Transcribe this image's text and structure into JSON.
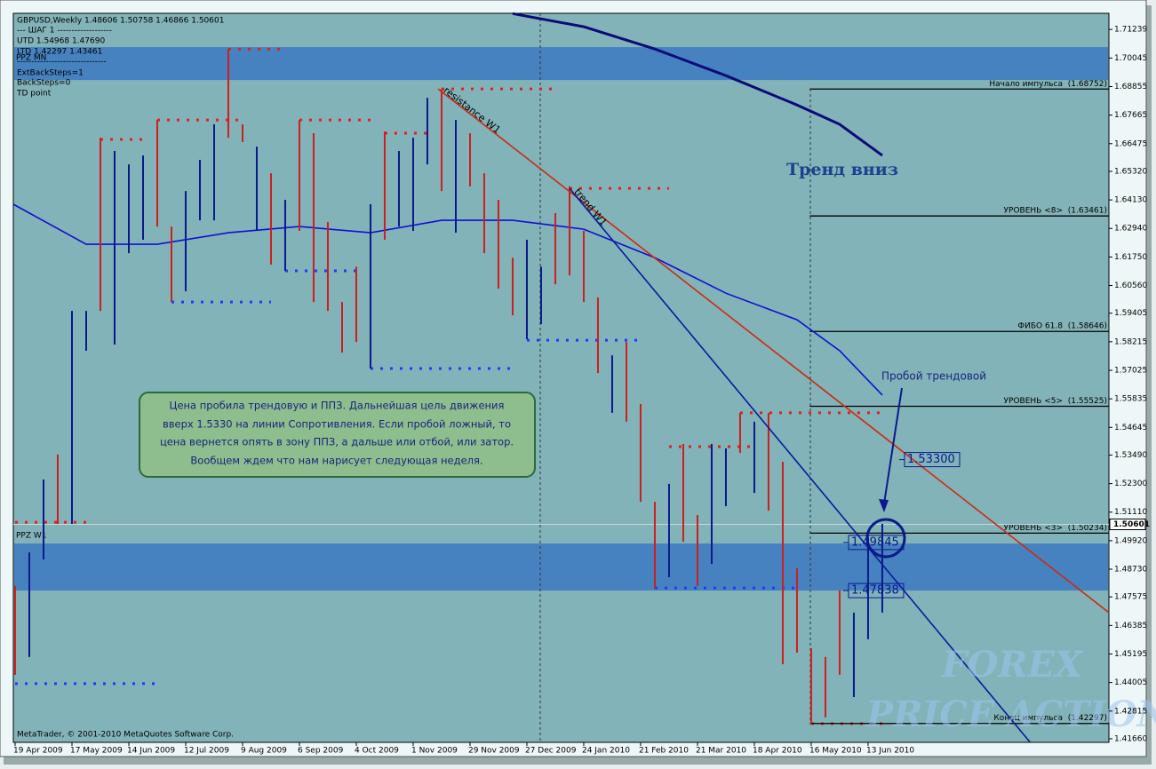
{
  "header": [
    "GBPUSD,Weekly  1.48606 1.50758 1.46866 1.50601",
    "---    ШАГ 1    -------------------",
    "UTD  1.54968  1.47690",
    "LTD  1.42297  1.43461",
    "-------------------------------",
    "ExtBackSteps=1",
    "BackSteps=0",
    "TD point"
  ],
  "copyright": "MetaTrader, © 2001-2010 MetaQuotes Software Corp.",
  "watermark": [
    "FOREX",
    "PRICE ACTION"
  ],
  "chart_data": {
    "type": "ohlc",
    "xlim": [
      -0.125,
      76.94
    ],
    "ylim": [
      1.4151,
      1.7191
    ],
    "yticks": [
      1.71239,
      1.70045,
      1.68855,
      1.67665,
      1.66475,
      {
        "value": 1.6532,
        "label": "1.65320"
      },
      {
        "value": 1.6413,
        "label": "1.64130"
      },
      {
        "value": 1.6294,
        "label": "1.62940"
      },
      {
        "value": 1.6175,
        "label": "1.61750"
      },
      {
        "value": 1.6056,
        "label": "1.60560"
      },
      1.59405,
      1.58215,
      1.57025,
      1.55835,
      1.54645,
      {
        "value": 1.5349,
        "label": "1.53490"
      },
      {
        "value": 1.523,
        "label": "1.52300"
      },
      {
        "value": 1.5111,
        "label": "1.51110"
      },
      {
        "value": 1.4992,
        "label": "1.49920"
      },
      {
        "value": 1.4873,
        "label": "1.48730"
      },
      1.47575,
      1.46385,
      1.45195,
      1.44005,
      1.42815,
      {
        "value": 1.4166,
        "label": "1.41660"
      }
    ],
    "xticks": [
      {
        "value": 0,
        "label": "19 Apr 2009"
      },
      {
        "value": 4,
        "label": "17 May 2009"
      },
      {
        "value": 8,
        "label": "14 Jun 2009"
      },
      {
        "value": 12,
        "label": "12 Jul 2009"
      },
      {
        "value": 16,
        "label": "9 Aug 2009"
      },
      {
        "value": 20,
        "label": "6 Sep 2009"
      },
      {
        "value": 24,
        "label": "4 Oct 2009"
      },
      {
        "value": 28,
        "label": "1 Nov 2009"
      },
      {
        "value": 32,
        "label": "29 Nov 2009"
      },
      {
        "value": 36,
        "label": "27 Dec 2009"
      },
      {
        "value": 40,
        "label": "24 Jan 2010"
      },
      {
        "value": 44,
        "label": "21 Feb 2010"
      },
      {
        "value": 48,
        "label": "21 Mar 2010"
      },
      {
        "value": 52,
        "label": "18 Apr 2010"
      },
      {
        "value": 56,
        "label": "16 May 2010"
      },
      {
        "value": 60,
        "label": "13 Jun 2010"
      }
    ],
    "bars": {
      "high": [
        1.4803,
        1.4943,
        1.5247,
        1.5351,
        1.595,
        1.595,
        1.6672,
        1.6617,
        1.6561,
        1.6598,
        1.6746,
        1.6302,
        1.645,
        1.658,
        1.6728,
        1.7042,
        1.6728,
        1.6635,
        1.6524,
        1.6413,
        1.6746,
        1.6691,
        1.6321,
        1.5987,
        1.6135,
        1.6395,
        1.6698,
        1.6617,
        1.6672,
        1.6839,
        1.6876,
        1.6746,
        1.6691,
        1.6524,
        1.6413,
        1.6172,
        1.6247,
        1.6135,
        1.6358,
        1.6469,
        1.6284,
        1.6006,
        1.5765,
        1.5821,
        1.5562,
        1.5154,
        1.5229,
        1.5395,
        1.5099,
        1.5395,
        1.5377,
        1.5525,
        1.5488,
        1.5525,
        1.5321,
        1.4877,
        1.4544,
        1.4507,
        1.4784,
        1.4692,
        1.5006,
        1.5062
      ],
      "low": [
        1.4433,
        1.4507,
        1.4914,
        1.5062,
        1.5062,
        1.5784,
        1.595,
        1.581,
        1.6191,
        1.6247,
        1.6302,
        1.5987,
        1.6032,
        1.6328,
        1.6328,
        1.6672,
        1.6654,
        1.6284,
        1.6143,
        1.6117,
        1.6284,
        1.5987,
        1.595,
        1.5776,
        1.5821,
        1.571,
        1.6247,
        1.6302,
        1.6284,
        1.6561,
        1.645,
        1.6276,
        1.6469,
        1.6191,
        1.6043,
        1.5932,
        1.5832,
        1.5895,
        1.6061,
        1.6098,
        1.5987,
        1.5691,
        1.5525,
        1.5488,
        1.5154,
        1.4792,
        1.484,
        1.4988,
        1.4803,
        1.4895,
        1.5136,
        1.5358,
        1.5191,
        1.5117,
        1.4477,
        1.4525,
        1.4229,
        1.4255,
        1.4433,
        1.434,
        1.4581,
        1.4692
      ],
      "colors": [
        "#cc1f1f",
        "#0a1a8c",
        "#0a1a8c",
        "#cc1f1f",
        "#0a1a8c",
        "#0a1a8c",
        "#cc1f1f",
        "#0a1a8c",
        "#0a1a8c",
        "#0a1a8c",
        "#cc1f1f",
        "#cc1f1f",
        "#0a1a8c",
        "#0a1a8c",
        "#0a1a8c",
        "#cc1f1f",
        "#cc1f1f",
        "#0a1a8c",
        "#cc1f1f",
        "#0a1a8c",
        "#cc1f1f",
        "#cc1f1f",
        "#cc1f1f",
        "#cc1f1f",
        "#cc1f1f",
        "#0a1a8c",
        "#cc1f1f",
        "#0a1a8c",
        "#0a1a8c",
        "#0a1a8c",
        "#cc1f1f",
        "#0a1a8c",
        "#cc1f1f",
        "#cc1f1f",
        "#cc1f1f",
        "#cc1f1f",
        "#0a1a8c",
        "#0a1a8c",
        "#cc1f1f",
        "#cc1f1f",
        "#cc1f1f",
        "#cc1f1f",
        "#0a1a8c",
        "#cc1f1f",
        "#cc1f1f",
        "#cc1f1f",
        "#0a1a8c",
        "#cc1f1f",
        "#cc1f1f",
        "#0a1a8c",
        "#0a1a8c",
        "#cc1f1f",
        "#0a1a8c",
        "#cc1f1f",
        "#cc1f1f",
        "#cc1f1f",
        "#cc1f1f",
        "#cc1f1f",
        "#cc1f1f",
        "#0a1a8c",
        "#0a1a8c",
        "#0a1a8c"
      ]
    },
    "moving_averages": [
      {
        "color": "#1010d0",
        "width": 1.6,
        "x": [
          -0.125,
          5,
          10,
          15,
          20,
          25,
          30,
          35,
          40,
          45,
          50,
          55,
          58,
          61
        ],
        "values": [
          1.6395,
          1.6228,
          1.6228,
          1.6276,
          1.6302,
          1.6276,
          1.6328,
          1.6328,
          1.6291,
          1.6172,
          1.6024,
          1.5913,
          1.5784,
          1.5599
        ]
      },
      {
        "color": "#0a0a78",
        "width": 3,
        "x": [
          35,
          40,
          45,
          50,
          55,
          58,
          61
        ],
        "values": [
          1.719,
          1.7135,
          1.7042,
          1.6931,
          1.6809,
          1.6728,
          1.6598
        ]
      }
    ],
    "trend_lines": [
      {
        "label": "resistance W1",
        "color": "#cc2a10",
        "x": [
          29.75,
          76.94
        ],
        "values": [
          1.6876,
          1.4692
        ]
      },
      {
        "label": "trend W1",
        "color": "#0a1a9c",
        "x": [
          39,
          71.4
        ],
        "values": [
          1.6461,
          1.4151
        ]
      }
    ],
    "zone_color": "#4682c0",
    "zones": [
      {
        "label": "PPZ MN",
        "range": [
          1.6913,
          1.705
        ]
      },
      {
        "label": "PPZ W1",
        "range": [
          1.4784,
          1.498
        ]
      }
    ],
    "level_start": 55.9,
    "levels": [
      {
        "label": "Начало импульса",
        "value_label": "(1.68752)",
        "value": 1.68752
      },
      {
        "label": "УРОВЕНЬ <8>",
        "value_label": "(1.63461)",
        "value": 1.63461
      },
      {
        "label": "ФИБО 61.8",
        "value_label": "(1.58646)",
        "value": 1.58646
      },
      {
        "label": "УРОВЕНЬ <5>",
        "value_label": "(1.55525)",
        "value": 1.55525
      },
      {
        "label": "УРОВЕНЬ <3>",
        "value_label": "(1.50234)",
        "value": 1.50234
      },
      {
        "label": "Конец импульса",
        "value_label": "(1.42297)",
        "value": 1.42297
      }
    ],
    "dotted_levels": [
      {
        "x": [
          15,
          19
        ],
        "value": 1.7042,
        "color": "#e02020"
      },
      {
        "x": [
          6,
          9
        ],
        "value": 1.6665,
        "color": "#e02020"
      },
      {
        "x": [
          10,
          16
        ],
        "value": 1.6746,
        "color": "#e02020"
      },
      {
        "x": [
          20,
          25
        ],
        "value": 1.6746,
        "color": "#e02020"
      },
      {
        "x": [
          26,
          29
        ],
        "value": 1.6691,
        "color": "#e02020"
      },
      {
        "x": [
          30,
          38
        ],
        "value": 1.6876,
        "color": "#e02020"
      },
      {
        "x": [
          39,
          46
        ],
        "value": 1.6461,
        "color": "#e02020"
      },
      {
        "x": [
          0,
          5
        ],
        "value": 1.5069,
        "color": "#e02020"
      },
      {
        "x": [
          51,
          61
        ],
        "value": 1.5525,
        "color": "#e02020"
      },
      {
        "x": [
          46,
          52
        ],
        "value": 1.5384,
        "color": "#e02020"
      },
      {
        "x": [
          56,
          61.5
        ],
        "value": 1.4229,
        "color": "#e02020"
      },
      {
        "x": [
          11,
          18
        ],
        "value": 1.5987,
        "color": "#1a3cff"
      },
      {
        "x": [
          19,
          24
        ],
        "value": 1.6117,
        "color": "#1a3cff"
      },
      {
        "x": [
          25,
          35
        ],
        "value": 1.571,
        "color": "#1a3cff"
      },
      {
        "x": [
          36,
          44
        ],
        "value": 1.5828,
        "color": "#1a3cff"
      },
      {
        "x": [
          45,
          55
        ],
        "value": 1.4795,
        "color": "#1a3cff"
      },
      {
        "x": [
          0,
          10
        ],
        "value": 1.4396,
        "color": "#1a3cff"
      }
    ],
    "last_price": {
      "value": 1.50601,
      "label": "1.50601"
    },
    "price_labels": [
      {
        "value": 1.533,
        "label": "1.53300"
      },
      {
        "value": 1.49845,
        "label": "1.49845"
      },
      {
        "value": 1.47838,
        "label": "1.47838"
      }
    ],
    "annotations": {
      "trend": "Тренд вниз",
      "breakout": "Пробой трендовой",
      "comment": [
        "Цена пробила трендовую и ППЗ. Дальнейшая цель движения",
        "вверх 1.5330 на линии Сопротивления. Если пробой ложный, то",
        "цена вернется опять в зону ППЗ,  а дальше или  отбой, или затор.",
        "Вообщем ждем что нам нарисует следующая неделя."
      ]
    }
  }
}
